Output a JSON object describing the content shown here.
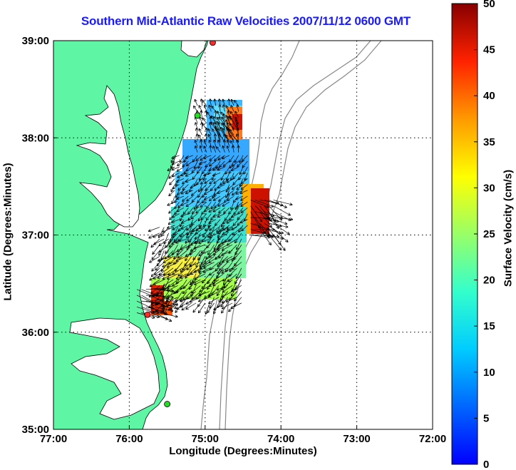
{
  "chart_data": {
    "type": "heatmap",
    "title": "Southern Mid-Atlantic Raw Velocities 2007/11/12 0600 GMT",
    "xlabel": "Longitude (Degrees:Minutes)",
    "ylabel": "Latitude (Degrees:Minutes)",
    "colorbar_label": "Surface Velocity (cm/s)",
    "x_ticks": [
      "77:00",
      "76:00",
      "75:00",
      "74:00",
      "73:00",
      "72:00"
    ],
    "y_ticks": [
      "39:00",
      "38:00",
      "37:00",
      "36:00",
      "35:00"
    ],
    "colorbar_ticks": [
      "0",
      "5",
      "10",
      "15",
      "20",
      "25",
      "30",
      "35",
      "40",
      "45",
      "50"
    ],
    "xlim": [
      -77,
      -72
    ],
    "ylim": [
      35,
      39
    ],
    "clim": [
      0,
      50
    ],
    "grid": true,
    "colormap": "jet",
    "land_color": "#5ef5a5",
    "arrow_color": "#000000",
    "stations": [
      {
        "lon": -74.9,
        "lat": 38.98,
        "color": "#ff2a2a"
      },
      {
        "lon": -75.1,
        "lat": 38.23,
        "color": "#22dd22"
      },
      {
        "lon": -75.76,
        "lat": 36.18,
        "color": "#ff2a2a"
      },
      {
        "lon": -75.5,
        "lat": 35.26,
        "color": "#22dd22"
      }
    ],
    "regions": [
      {
        "name": "north",
        "lon": [
          -75.1,
          -74.55
        ],
        "lat": [
          37.85,
          38.35
        ],
        "speed": 8
      },
      {
        "name": "central",
        "lon": [
          -75.4,
          -74.4
        ],
        "lat": [
          37.1,
          37.85
        ],
        "speed": 12
      },
      {
        "name": "southern",
        "lon": [
          -75.6,
          -74.5
        ],
        "lat": [
          36.3,
          37.1
        ],
        "speed": 24
      },
      {
        "name": "offshore-jet",
        "lon": [
          -74.4,
          -74.1
        ],
        "lat": [
          37.0,
          37.4
        ],
        "speed": 48
      },
      {
        "name": "capehatteras-jet",
        "lon": [
          -75.9,
          -75.6
        ],
        "lat": [
          36.2,
          36.5
        ],
        "speed": 45
      },
      {
        "name": "northeast-hotspot",
        "lon": [
          -74.8,
          -74.5
        ],
        "lat": [
          37.95,
          38.1
        ],
        "speed": 42
      }
    ]
  }
}
